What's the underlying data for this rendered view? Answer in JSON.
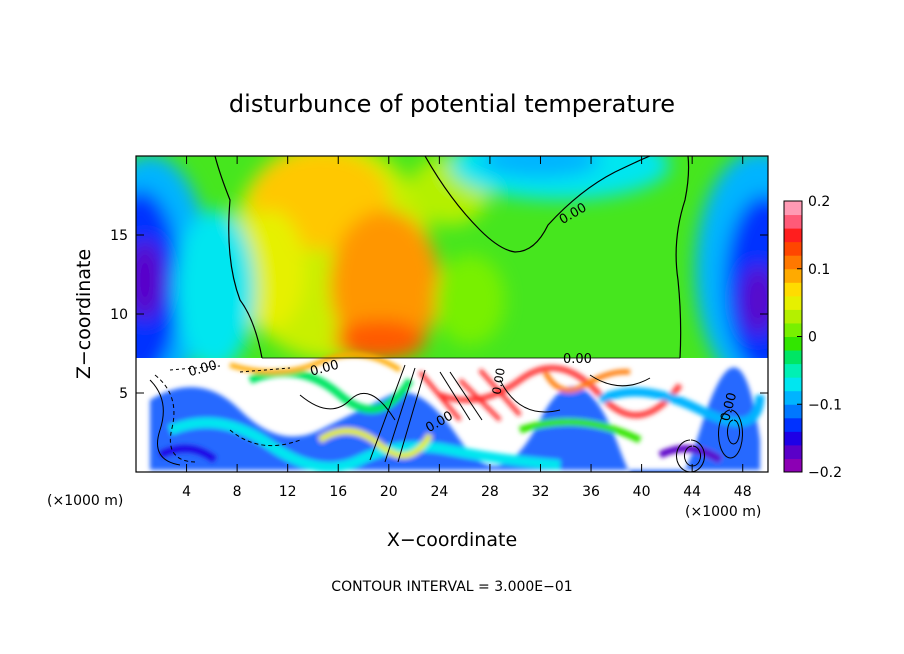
{
  "chart_data": {
    "type": "heatmap",
    "title": "disturbunce of potential temperature",
    "xlabel": "X−coordinate",
    "ylabel": "Z−coordinate",
    "x_unit_left": "(×1000 m)",
    "x_unit_right": "(×1000 m)",
    "xlim": [
      0,
      50
    ],
    "ylim": [
      0,
      20
    ],
    "x_ticks": [
      4,
      8,
      12,
      16,
      20,
      24,
      28,
      32,
      36,
      40,
      44,
      48
    ],
    "x_tick_labels": [
      "4",
      "8",
      "12",
      "16",
      "20",
      "24",
      "28",
      "32",
      "36",
      "40",
      "44",
      "48"
    ],
    "y_ticks": [
      5,
      10,
      15
    ],
    "y_tick_labels": [
      "5",
      "10",
      "15"
    ],
    "colorbar": {
      "range": [
        -0.2,
        0.2
      ],
      "ticks": [
        0.2,
        0.1,
        0,
        -0.1,
        -0.2
      ],
      "tick_labels": [
        "0.2",
        "0.1",
        "0",
        "−0.1",
        "−0.2"
      ],
      "colors": [
        "#8c00b4",
        "#5a00c8",
        "#1e00e6",
        "#0032ff",
        "#0078ff",
        "#00b4ff",
        "#00e6f0",
        "#00f0b4",
        "#00e664",
        "#32e600",
        "#78f000",
        "#b4f000",
        "#e6f000",
        "#ffdc00",
        "#ffaa00",
        "#ff7800",
        "#ff4600",
        "#ff1e1e",
        "#ff5a78",
        "#ff9ab4"
      ]
    },
    "contour_labels": [
      "0.00",
      "0.00",
      "0.00",
      "0.00",
      "0.00",
      "0.00",
      "0.00"
    ],
    "footer": "CONTOUR INTERVAL = 3.000E−01"
  }
}
